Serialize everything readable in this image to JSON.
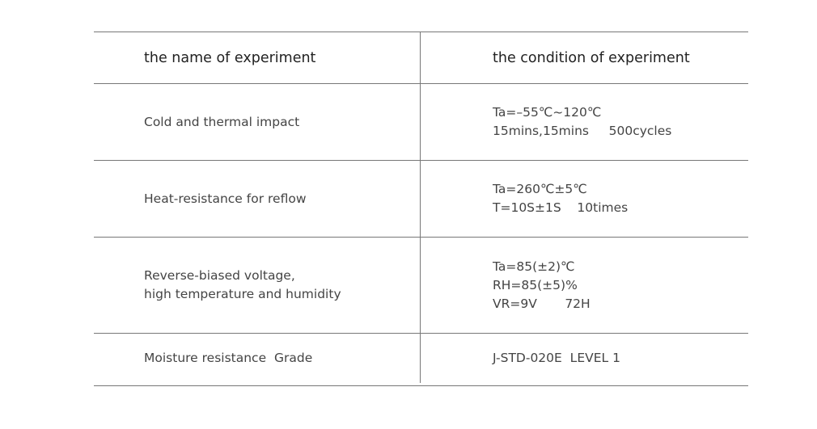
{
  "table": {
    "header": [
      "the name of experiment",
      "the condition of experiment"
    ],
    "rows": [
      [
        [
          "Cold and thermal impact"
        ],
        [
          "Ta=–55℃~120℃",
          "15mins,15mins     500cycles"
        ]
      ],
      [
        [
          "Heat-resistance for reflow"
        ],
        [
          "Ta=260℃±5℃",
          "T=10S±1S    10times"
        ]
      ],
      [
        [
          "Reverse-biased voltage,",
          "high temperature and humidity"
        ],
        [
          "Ta=85(±2)℃",
          "RH=85(±5)%",
          "VR=9V       72H"
        ]
      ],
      [
        [
          "Moisture resistance  Grade"
        ],
        [
          "J-STD-020E  LEVEL 1"
        ]
      ]
    ]
  }
}
